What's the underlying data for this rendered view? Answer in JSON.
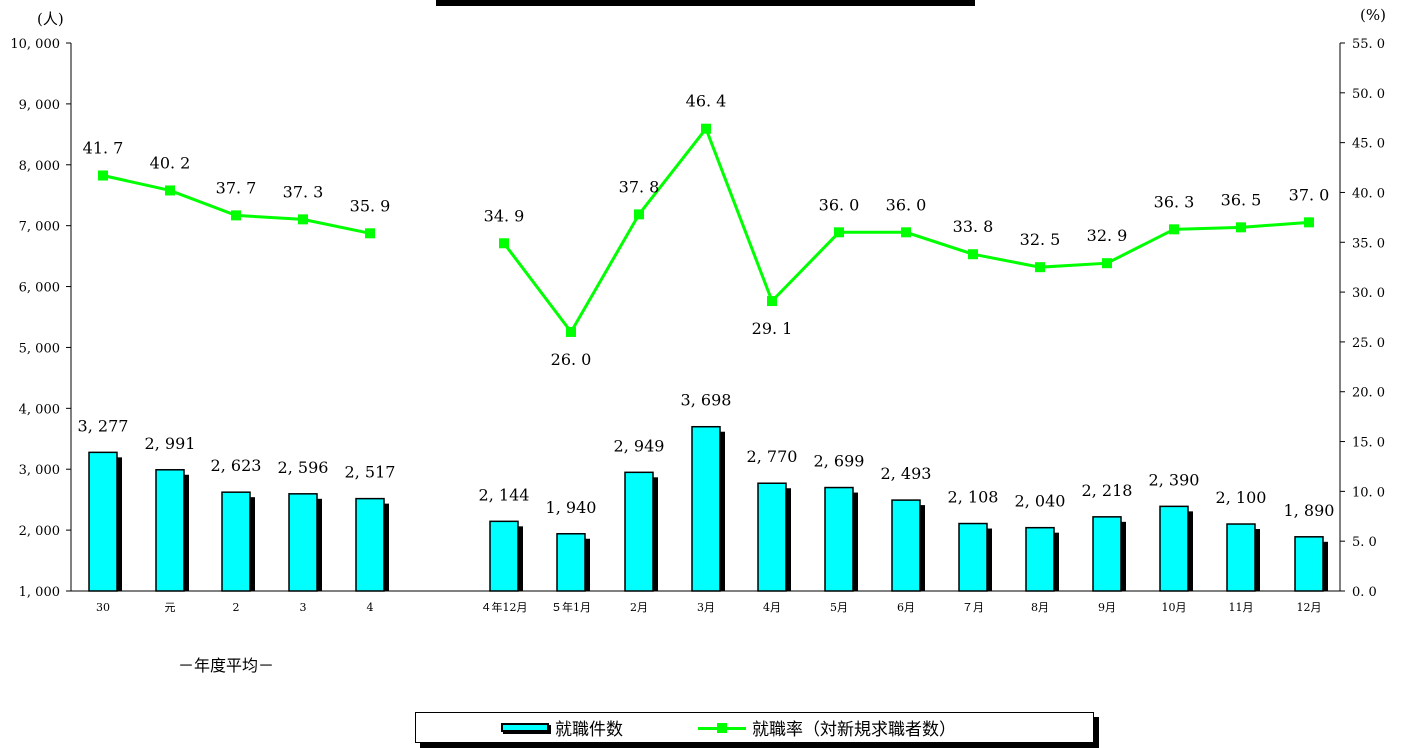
{
  "chart_data": {
    "type": "bar+line",
    "units": {
      "left": "(人)",
      "right": "(%)"
    },
    "period_label": "－年度平均－",
    "categories": [
      "30",
      "元",
      "2",
      "3",
      "4",
      "４年12月",
      "５年1月",
      "2月",
      "3月",
      "4月",
      "5月",
      "6月",
      "７月",
      "8月",
      "9月",
      "10月",
      "11月",
      "12月"
    ],
    "series": [
      {
        "name": "就職件数",
        "kind": "bar",
        "axis": "left",
        "color": "#00ffff",
        "values": [
          3277,
          2991,
          2623,
          2596,
          2517,
          2144,
          1940,
          2949,
          3698,
          2770,
          2699,
          2493,
          2108,
          2040,
          2218,
          2390,
          2100,
          1890
        ],
        "labels": [
          "3, 277",
          "2, 991",
          "2, 623",
          "2, 596",
          "2, 517",
          "2, 144",
          "1, 940",
          "2, 949",
          "3, 698",
          "2, 770",
          "2, 699",
          "2, 493",
          "2, 108",
          "2, 040",
          "2, 218",
          "2, 390",
          "2, 100",
          "1, 890"
        ]
      },
      {
        "name": "就職率（対新規求職者数）",
        "kind": "line",
        "axis": "right",
        "color": "#00ff00",
        "segments": [
          [
            0,
            4
          ],
          [
            5,
            17
          ]
        ],
        "values": [
          41.7,
          40.2,
          37.7,
          37.3,
          35.9,
          34.9,
          26.0,
          37.8,
          46.4,
          29.1,
          36.0,
          36.0,
          33.8,
          32.5,
          32.9,
          36.3,
          36.5,
          37.0
        ],
        "labels": [
          "41. 7",
          "40. 2",
          "37. 7",
          "37. 3",
          "35. 9",
          "34. 9",
          "26. 0",
          "37. 8",
          "46. 4",
          "29. 1",
          "36. 0",
          "36. 0",
          "33. 8",
          "32. 5",
          "32. 9",
          "36. 3",
          "36. 5",
          "37. 0"
        ]
      }
    ],
    "y_left": {
      "min": 1000,
      "max": 10000,
      "ticks": [
        1000,
        2000,
        3000,
        4000,
        5000,
        6000,
        7000,
        8000,
        9000,
        10000
      ],
      "tick_labels": [
        "1, 000",
        "2, 000",
        "3, 000",
        "4, 000",
        "5, 000",
        "6, 000",
        "7, 000",
        "8, 000",
        "9, 000",
        "10, 000"
      ]
    },
    "y_right": {
      "min": 0,
      "max": 55,
      "ticks": [
        0,
        5,
        10,
        15,
        20,
        25,
        30,
        35,
        40,
        45,
        50,
        55
      ],
      "tick_labels": [
        "0. 0",
        "5. 0",
        "10. 0",
        "15. 0",
        "20. 0",
        "25. 0",
        "30. 0",
        "35. 0",
        "40. 0",
        "45. 0",
        "50. 0",
        "55. 0"
      ]
    },
    "legend": [
      "就職件数",
      "就職率（対新規求職者数）"
    ]
  }
}
